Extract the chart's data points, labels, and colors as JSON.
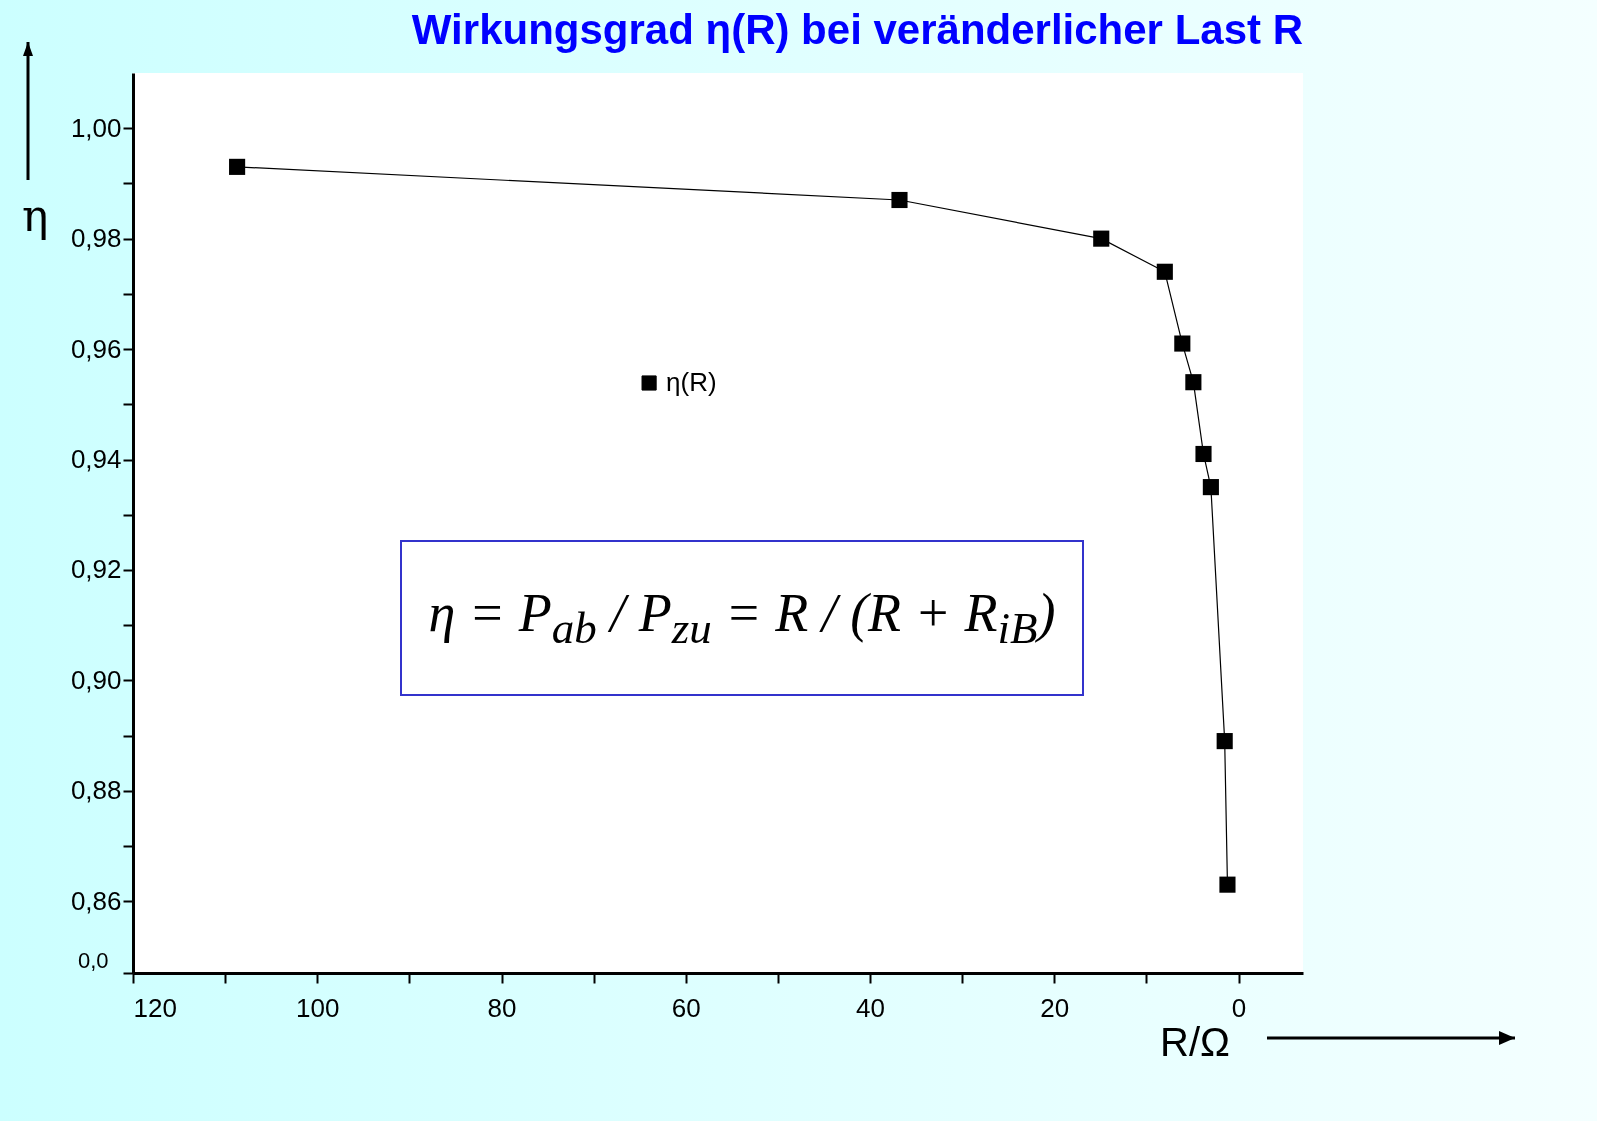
{
  "chart_data": {
    "type": "line",
    "title": "Wirkungsgrad η(R) bei veränderlicher Last R",
    "xlabel": "R/Ω",
    "ylabel": "η",
    "x": [
      108.7,
      36.8,
      14.9,
      8.0,
      6.1,
      4.9,
      3.8,
      3.0,
      1.5,
      1.2
    ],
    "series": [
      {
        "name": "η(R)",
        "color": "#000000",
        "values": [
          0.993,
          0.987,
          0.98,
          0.974,
          0.961,
          0.954,
          0.941,
          0.935,
          0.889,
          0.863
        ]
      }
    ],
    "xlim": [
      120,
      -7
    ],
    "xticks": [
      120,
      {
        "value": 110,
        "label": null
      },
      100,
      {
        "value": 90,
        "label": null
      },
      80,
      {
        "value": 70,
        "label": null
      },
      60,
      {
        "value": 50,
        "label": null
      },
      40,
      {
        "value": 30,
        "label": null
      },
      20,
      {
        "value": 10,
        "label": null
      },
      0
    ],
    "ylim": [
      0.847,
      1.01
    ],
    "yticks": [
      {
        "value": 0.847,
        "label": null
      },
      {
        "value": 0.86,
        "label": "0,86"
      },
      {
        "value": 0.87,
        "label": null
      },
      {
        "value": 0.88,
        "label": "0,88"
      },
      {
        "value": 0.89,
        "label": null
      },
      {
        "value": 0.9,
        "label": "0,90"
      },
      {
        "value": 0.91,
        "label": null
      },
      {
        "value": 0.92,
        "label": "0,92"
      },
      {
        "value": 0.93,
        "label": null
      },
      {
        "value": 0.94,
        "label": "0,94"
      },
      {
        "value": 0.95,
        "label": null
      },
      {
        "value": 0.96,
        "label": "0,96"
      },
      {
        "value": 0.97,
        "label": null
      },
      {
        "value": 0.98,
        "label": "0,98"
      },
      {
        "value": 0.99,
        "label": null
      },
      {
        "value": 1,
        "label": "1,00"
      }
    ],
    "annotations": [
      "η = P$_{ab}$ / P$_{zu}$ = R / (R + R$_{iB}$)",
      "0,0"
    ],
    "grid": false,
    "legend": "top",
    "marker": "square",
    "line_style": "solid"
  }
}
